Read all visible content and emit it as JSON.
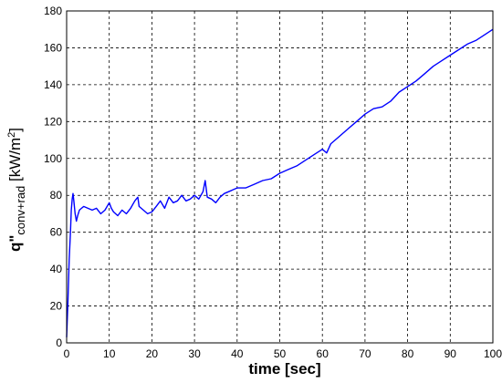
{
  "chart_data": {
    "type": "line",
    "xlabel": "time [sec]",
    "ylabel": {
      "prefix": "q\"",
      "subscript": "conv+rad",
      "units_open": " [kW/m",
      "units_sup": "2",
      "units_close": "]"
    },
    "xlim": [
      0,
      100
    ],
    "ylim": [
      0,
      180
    ],
    "xticks": [
      0,
      10,
      20,
      30,
      40,
      50,
      60,
      70,
      80,
      90,
      100
    ],
    "yticks": [
      0,
      20,
      40,
      60,
      80,
      100,
      120,
      140,
      160,
      180
    ],
    "grid": true,
    "series": [
      {
        "color": "#0000ff",
        "points": [
          [
            0,
            3
          ],
          [
            0.3,
            22
          ],
          [
            0.6,
            45
          ],
          [
            0.9,
            60
          ],
          [
            1.1,
            72
          ],
          [
            1.3,
            78
          ],
          [
            1.5,
            81
          ],
          [
            1.7,
            77
          ],
          [
            2.0,
            70
          ],
          [
            2.3,
            66
          ],
          [
            2.6,
            69
          ],
          [
            3.0,
            72
          ],
          [
            3.5,
            73
          ],
          [
            4.0,
            74
          ],
          [
            5.0,
            73
          ],
          [
            6.0,
            72
          ],
          [
            7.0,
            73
          ],
          [
            8.0,
            70
          ],
          [
            9.0,
            72
          ],
          [
            10.0,
            76
          ],
          [
            10.5,
            73
          ],
          [
            11.0,
            71
          ],
          [
            12.0,
            69
          ],
          [
            13.0,
            72
          ],
          [
            14.0,
            70
          ],
          [
            15.0,
            73
          ],
          [
            16.0,
            77
          ],
          [
            16.7,
            79
          ],
          [
            17.0,
            74
          ],
          [
            18.0,
            72
          ],
          [
            19.0,
            70
          ],
          [
            20.0,
            71
          ],
          [
            21.0,
            74
          ],
          [
            22.0,
            77
          ],
          [
            23.0,
            73
          ],
          [
            24.0,
            79
          ],
          [
            25.0,
            76
          ],
          [
            26.0,
            77
          ],
          [
            27.0,
            80
          ],
          [
            28.0,
            77
          ],
          [
            29.0,
            78
          ],
          [
            30.0,
            80
          ],
          [
            31.0,
            78
          ],
          [
            32.0,
            82
          ],
          [
            32.5,
            88
          ],
          [
            33.0,
            79
          ],
          [
            34.0,
            78
          ],
          [
            35.0,
            76
          ],
          [
            36.0,
            79
          ],
          [
            37.0,
            81
          ],
          [
            38.0,
            82
          ],
          [
            40.0,
            84
          ],
          [
            42.0,
            84
          ],
          [
            44.0,
            86
          ],
          [
            46.0,
            88
          ],
          [
            48.0,
            89
          ],
          [
            50.0,
            92
          ],
          [
            52.0,
            94
          ],
          [
            54.0,
            96
          ],
          [
            56.0,
            99
          ],
          [
            58.0,
            102
          ],
          [
            60.0,
            105
          ],
          [
            61.0,
            103
          ],
          [
            62.0,
            108
          ],
          [
            64.0,
            112
          ],
          [
            66.0,
            116
          ],
          [
            68.0,
            120
          ],
          [
            70.0,
            124
          ],
          [
            72.0,
            127
          ],
          [
            74.0,
            128
          ],
          [
            76.0,
            131
          ],
          [
            78.0,
            136
          ],
          [
            80.0,
            139
          ],
          [
            82.0,
            142
          ],
          [
            84.0,
            146
          ],
          [
            86.0,
            150
          ],
          [
            88.0,
            153
          ],
          [
            90.0,
            156
          ],
          [
            92.0,
            159
          ],
          [
            94.0,
            162
          ],
          [
            96.0,
            164
          ],
          [
            98.0,
            167
          ],
          [
            100.0,
            170
          ]
        ]
      }
    ]
  }
}
